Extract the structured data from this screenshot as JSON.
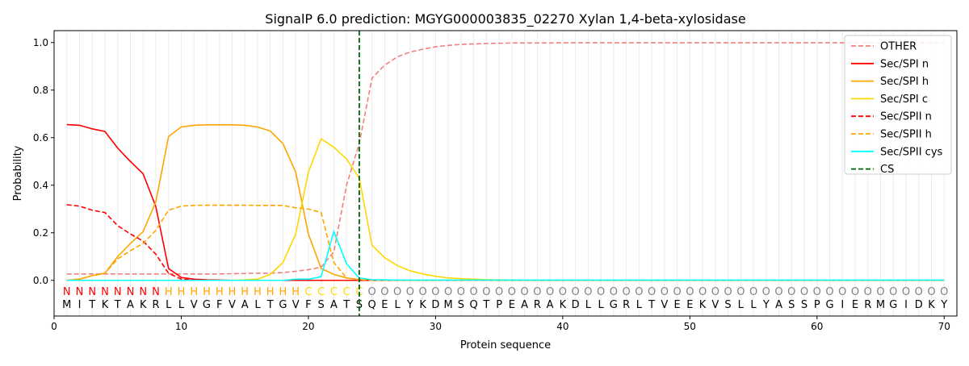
{
  "chart_data": {
    "type": "line",
    "title": "SignalP 6.0 prediction: MGYG000003835_02270 Xylan 1,4-beta-xylosidase",
    "xlabel": "Protein sequence",
    "ylabel": "Probability",
    "xlim": [
      0,
      71
    ],
    "ylim": [
      -0.15,
      1.05
    ],
    "xticks": [
      0,
      10,
      20,
      30,
      40,
      50,
      60,
      70
    ],
    "yticks": [
      0.0,
      0.2,
      0.4,
      0.6,
      0.8,
      1.0
    ],
    "grid": "vertical lines at each residue",
    "legend_position": "top-right",
    "sequence": [
      "M",
      "I",
      "T",
      "K",
      "T",
      "A",
      "K",
      "R",
      "L",
      "L",
      "V",
      "G",
      "F",
      "V",
      "A",
      "L",
      "T",
      "G",
      "V",
      "F",
      "S",
      "A",
      "T",
      "S",
      "Q",
      "E",
      "L",
      "Y",
      "K",
      "D",
      "M",
      "S",
      "Q",
      "T",
      "P",
      "E",
      "A",
      "R",
      "A",
      "K",
      "D",
      "L",
      "L",
      "G",
      "R",
      "L",
      "T",
      "V",
      "E",
      "E",
      "K",
      "V",
      "S",
      "L",
      "L",
      "Y",
      "A",
      "S",
      "S",
      "P",
      "G",
      "I",
      "E",
      "R",
      "M",
      "G",
      "I",
      "D",
      "K",
      "Y"
    ],
    "labels": [
      "N",
      "N",
      "N",
      "N",
      "N",
      "N",
      "N",
      "N",
      "H",
      "H",
      "H",
      "H",
      "H",
      "H",
      "H",
      "H",
      "H",
      "H",
      "H",
      "C",
      "C",
      "C",
      "C",
      "C",
      "O",
      "O",
      "O",
      "O",
      "O",
      "O",
      "O",
      "O",
      "O",
      "O",
      "O",
      "O",
      "O",
      "O",
      "O",
      "O",
      "O",
      "O",
      "O",
      "O",
      "O",
      "O",
      "O",
      "O",
      "O",
      "O",
      "O",
      "O",
      "O",
      "O",
      "O",
      "O",
      "O",
      "O",
      "O",
      "O",
      "O",
      "O",
      "O",
      "O",
      "O",
      "O",
      "O",
      "O",
      "O",
      "O"
    ],
    "label_colors": {
      "N": "#ff0000",
      "H": "#ffa500",
      "C": "#ffd700",
      "O": "#808080"
    },
    "cs_position": 24,
    "series": [
      {
        "name": "OTHER",
        "color": "#f08080",
        "dash": true,
        "values": [
          0.027,
          0.027,
          0.027,
          0.027,
          0.027,
          0.027,
          0.027,
          0.027,
          0.027,
          0.027,
          0.027,
          0.027,
          0.027,
          0.028,
          0.029,
          0.03,
          0.03,
          0.033,
          0.038,
          0.045,
          0.055,
          0.12,
          0.4,
          0.576,
          0.85,
          0.905,
          0.94,
          0.96,
          0.972,
          0.982,
          0.988,
          0.992,
          0.994,
          0.996,
          0.997,
          0.998,
          0.998,
          0.998,
          0.998,
          0.999,
          0.999,
          0.999,
          0.999,
          0.999,
          0.999,
          0.999,
          0.999,
          0.999,
          0.999,
          0.999,
          0.999,
          0.999,
          0.999,
          0.999,
          0.999,
          0.999,
          0.999,
          0.999,
          0.999,
          0.999,
          0.999,
          0.999,
          0.999,
          0.999,
          0.999,
          0.999,
          0.999,
          0.999,
          0.999,
          0.999
        ]
      },
      {
        "name": "Sec/SPI n",
        "color": "#ff0000",
        "dash": false,
        "values": [
          0.655,
          0.652,
          0.637,
          0.626,
          0.556,
          0.5,
          0.448,
          0.31,
          0.05,
          0.012,
          0.005,
          0.002,
          0.001,
          0,
          0,
          0,
          0,
          0,
          0,
          0,
          0,
          0,
          0,
          0,
          0,
          0,
          0,
          0,
          0,
          0,
          0,
          0,
          0,
          0,
          0,
          0,
          0,
          0,
          0,
          0,
          0,
          0,
          0,
          0,
          0,
          0,
          0,
          0,
          0,
          0,
          0,
          0,
          0,
          0,
          0,
          0,
          0,
          0,
          0,
          0,
          0,
          0,
          0,
          0,
          0,
          0,
          0,
          0,
          0,
          0
        ]
      },
      {
        "name": "Sec/SPI h",
        "color": "#ffa500",
        "dash": false,
        "values": [
          0,
          0.005,
          0.02,
          0.03,
          0.1,
          0.155,
          0.205,
          0.33,
          0.605,
          0.645,
          0.652,
          0.654,
          0.654,
          0.654,
          0.652,
          0.645,
          0.628,
          0.575,
          0.455,
          0.195,
          0.05,
          0.025,
          0.01,
          0.003,
          0,
          0,
          0,
          0,
          0,
          0,
          0,
          0,
          0,
          0,
          0,
          0,
          0,
          0,
          0,
          0,
          0,
          0,
          0,
          0,
          0,
          0,
          0,
          0,
          0,
          0,
          0,
          0,
          0,
          0,
          0,
          0,
          0,
          0,
          0,
          0,
          0,
          0,
          0,
          0,
          0,
          0,
          0,
          0,
          0,
          0
        ]
      },
      {
        "name": "Sec/SPI c",
        "color": "#ffd700",
        "dash": false,
        "values": [
          0,
          0,
          0,
          0,
          0,
          0,
          0,
          0,
          0,
          0,
          0,
          0,
          0,
          0,
          0.002,
          0.005,
          0.025,
          0.075,
          0.195,
          0.455,
          0.595,
          0.56,
          0.51,
          0.43,
          0.148,
          0.095,
          0.062,
          0.04,
          0.027,
          0.017,
          0.01,
          0.007,
          0.005,
          0.003,
          0.002,
          0.001,
          0,
          0,
          0,
          0,
          0,
          0,
          0,
          0,
          0,
          0,
          0,
          0,
          0,
          0,
          0,
          0,
          0,
          0,
          0,
          0,
          0,
          0,
          0,
          0,
          0,
          0,
          0,
          0,
          0,
          0,
          0,
          0,
          0,
          0
        ]
      },
      {
        "name": "Sec/SPII n",
        "color": "#ff0000",
        "dash": true,
        "values": [
          0.318,
          0.312,
          0.295,
          0.285,
          0.23,
          0.195,
          0.165,
          0.11,
          0.03,
          0.005,
          0.001,
          0,
          0,
          0,
          0,
          0,
          0,
          0,
          0,
          0,
          0,
          0,
          0,
          0,
          0,
          0,
          0,
          0,
          0,
          0,
          0,
          0,
          0,
          0,
          0,
          0,
          0,
          0,
          0,
          0,
          0,
          0,
          0,
          0,
          0,
          0,
          0,
          0,
          0,
          0,
          0,
          0,
          0,
          0,
          0,
          0,
          0,
          0,
          0,
          0,
          0,
          0,
          0,
          0,
          0,
          0,
          0,
          0,
          0,
          0
        ]
      },
      {
        "name": "Sec/SPII h",
        "color": "#ffa500",
        "dash": true,
        "values": [
          0,
          0.005,
          0.02,
          0.03,
          0.09,
          0.125,
          0.155,
          0.21,
          0.295,
          0.312,
          0.315,
          0.316,
          0.316,
          0.316,
          0.316,
          0.315,
          0.315,
          0.315,
          0.305,
          0.3,
          0.285,
          0.075,
          0.01,
          0.003,
          0,
          0,
          0,
          0,
          0,
          0,
          0,
          0,
          0,
          0,
          0,
          0,
          0,
          0,
          0,
          0,
          0,
          0,
          0,
          0,
          0,
          0,
          0,
          0,
          0,
          0,
          0,
          0,
          0,
          0,
          0,
          0,
          0,
          0,
          0,
          0,
          0,
          0,
          0,
          0,
          0,
          0,
          0,
          0,
          0,
          0
        ]
      },
      {
        "name": "Sec/SPII cys",
        "color": "#00ffff",
        "dash": false,
        "values": [
          0,
          0,
          0,
          0,
          0,
          0,
          0,
          0,
          0,
          0,
          0,
          0,
          0,
          0,
          0,
          0,
          0,
          0,
          0.005,
          0.005,
          0.015,
          0.205,
          0.07,
          0.01,
          0.003,
          0.002,
          0.001,
          0.001,
          0.001,
          0.001,
          0.001,
          0.001,
          0.001,
          0.001,
          0.001,
          0.001,
          0.001,
          0.001,
          0.001,
          0.001,
          0.001,
          0.001,
          0.001,
          0.001,
          0.001,
          0.001,
          0.001,
          0.001,
          0.001,
          0.001,
          0.001,
          0.001,
          0.001,
          0.001,
          0.001,
          0.001,
          0.001,
          0.001,
          0.001,
          0.001,
          0.001,
          0.001,
          0.001,
          0.001,
          0.001,
          0.001,
          0.001,
          0.001,
          0.001,
          0.001
        ]
      }
    ],
    "cs_legend": {
      "name": "CS",
      "color": "#006400"
    }
  }
}
